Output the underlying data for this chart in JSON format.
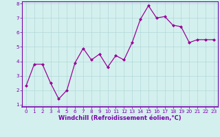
{
  "x": [
    0,
    1,
    2,
    3,
    4,
    5,
    6,
    7,
    8,
    9,
    10,
    11,
    12,
    13,
    14,
    15,
    16,
    17,
    18,
    19,
    20,
    21,
    22,
    23
  ],
  "y": [
    2.3,
    3.8,
    3.8,
    2.5,
    1.4,
    2.0,
    3.9,
    4.9,
    4.1,
    4.5,
    3.6,
    4.4,
    4.1,
    5.3,
    6.9,
    7.85,
    7.0,
    7.1,
    6.5,
    6.4,
    5.3,
    5.5,
    5.5,
    5.5
  ],
  "line_color": "#990099",
  "marker_color": "#990099",
  "bg_color": "#d4f0ee",
  "grid_color": "#b0d8d8",
  "xlabel": "Windchill (Refroidissement éolien,°C)",
  "xlabel_color": "#7700aa",
  "tick_color": "#7700aa",
  "axis_color": "#7700aa",
  "ylim": [
    1,
    8
  ],
  "xlim": [
    -0.5,
    23.5
  ],
  "yticks": [
    1,
    2,
    3,
    4,
    5,
    6,
    7,
    8
  ],
  "xticks": [
    0,
    1,
    2,
    3,
    4,
    5,
    6,
    7,
    8,
    9,
    10,
    11,
    12,
    13,
    14,
    15,
    16,
    17,
    18,
    19,
    20,
    21,
    22,
    23
  ],
  "tick_fontsize": 5.2,
  "xlabel_fontsize": 6.0
}
